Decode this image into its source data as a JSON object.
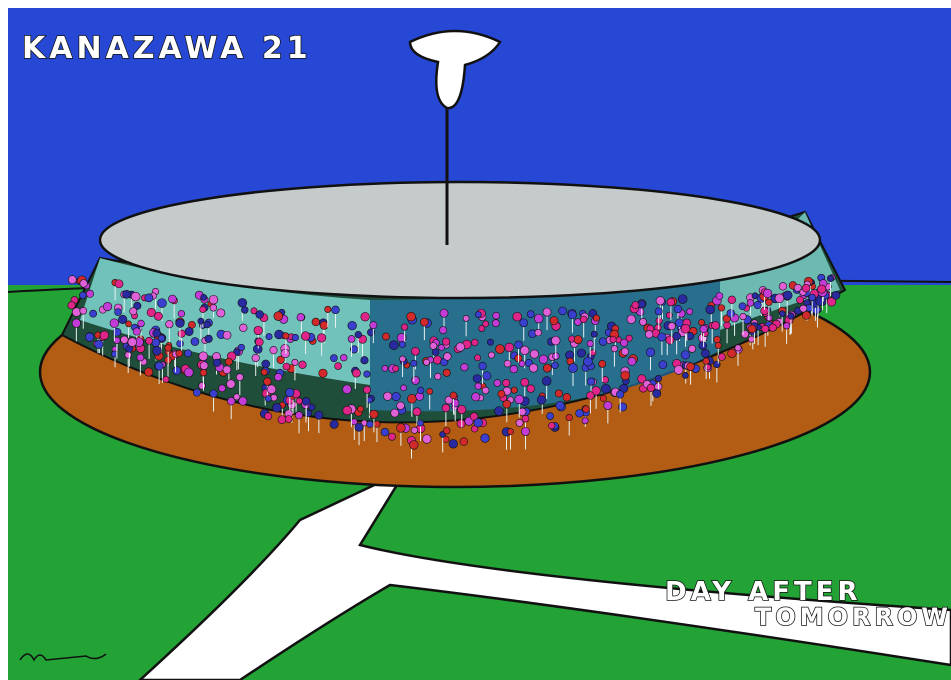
{
  "title": "KANAZAWA 21",
  "caption": {
    "line1": "DAY AFTER",
    "line2": "TOMORROW"
  }
}
